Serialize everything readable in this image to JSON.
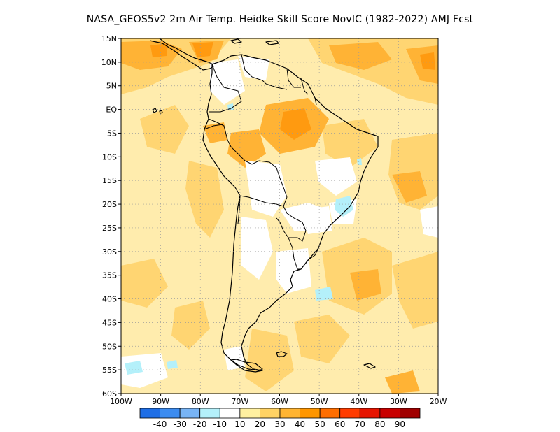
{
  "title": "NASA_GEOS5v2  2m Air Temp. Heidke Skill Score NovIC (1982-2022) AMJ Fcst",
  "map": {
    "lon_range": [
      -100,
      -20
    ],
    "lat_range": [
      -60,
      15
    ],
    "lat_ticks": [
      "15N",
      "10N",
      "5N",
      "EQ",
      "5S",
      "10S",
      "15S",
      "20S",
      "25S",
      "30S",
      "35S",
      "40S",
      "45S",
      "50S",
      "55S",
      "60S"
    ],
    "lon_ticks": [
      "100W",
      "90W",
      "80W",
      "70W",
      "60W",
      "50W",
      "40W",
      "30W",
      "20W"
    ],
    "grid": "dotted"
  },
  "colorbar": {
    "colors": [
      "#1e6ee6",
      "#3c8cf0",
      "#78b4f5",
      "#b4f0fa",
      "#ffffff",
      "#fff0a0",
      "#ffd264",
      "#ffb432",
      "#ff9600",
      "#ff6e00",
      "#ff3c00",
      "#e61400",
      "#c80000",
      "#a00000"
    ],
    "labels": [
      "-40",
      "-30",
      "-20",
      "-10",
      "10",
      "20",
      "30",
      "40",
      "50",
      "60",
      "70",
      "80",
      "90"
    ]
  }
}
